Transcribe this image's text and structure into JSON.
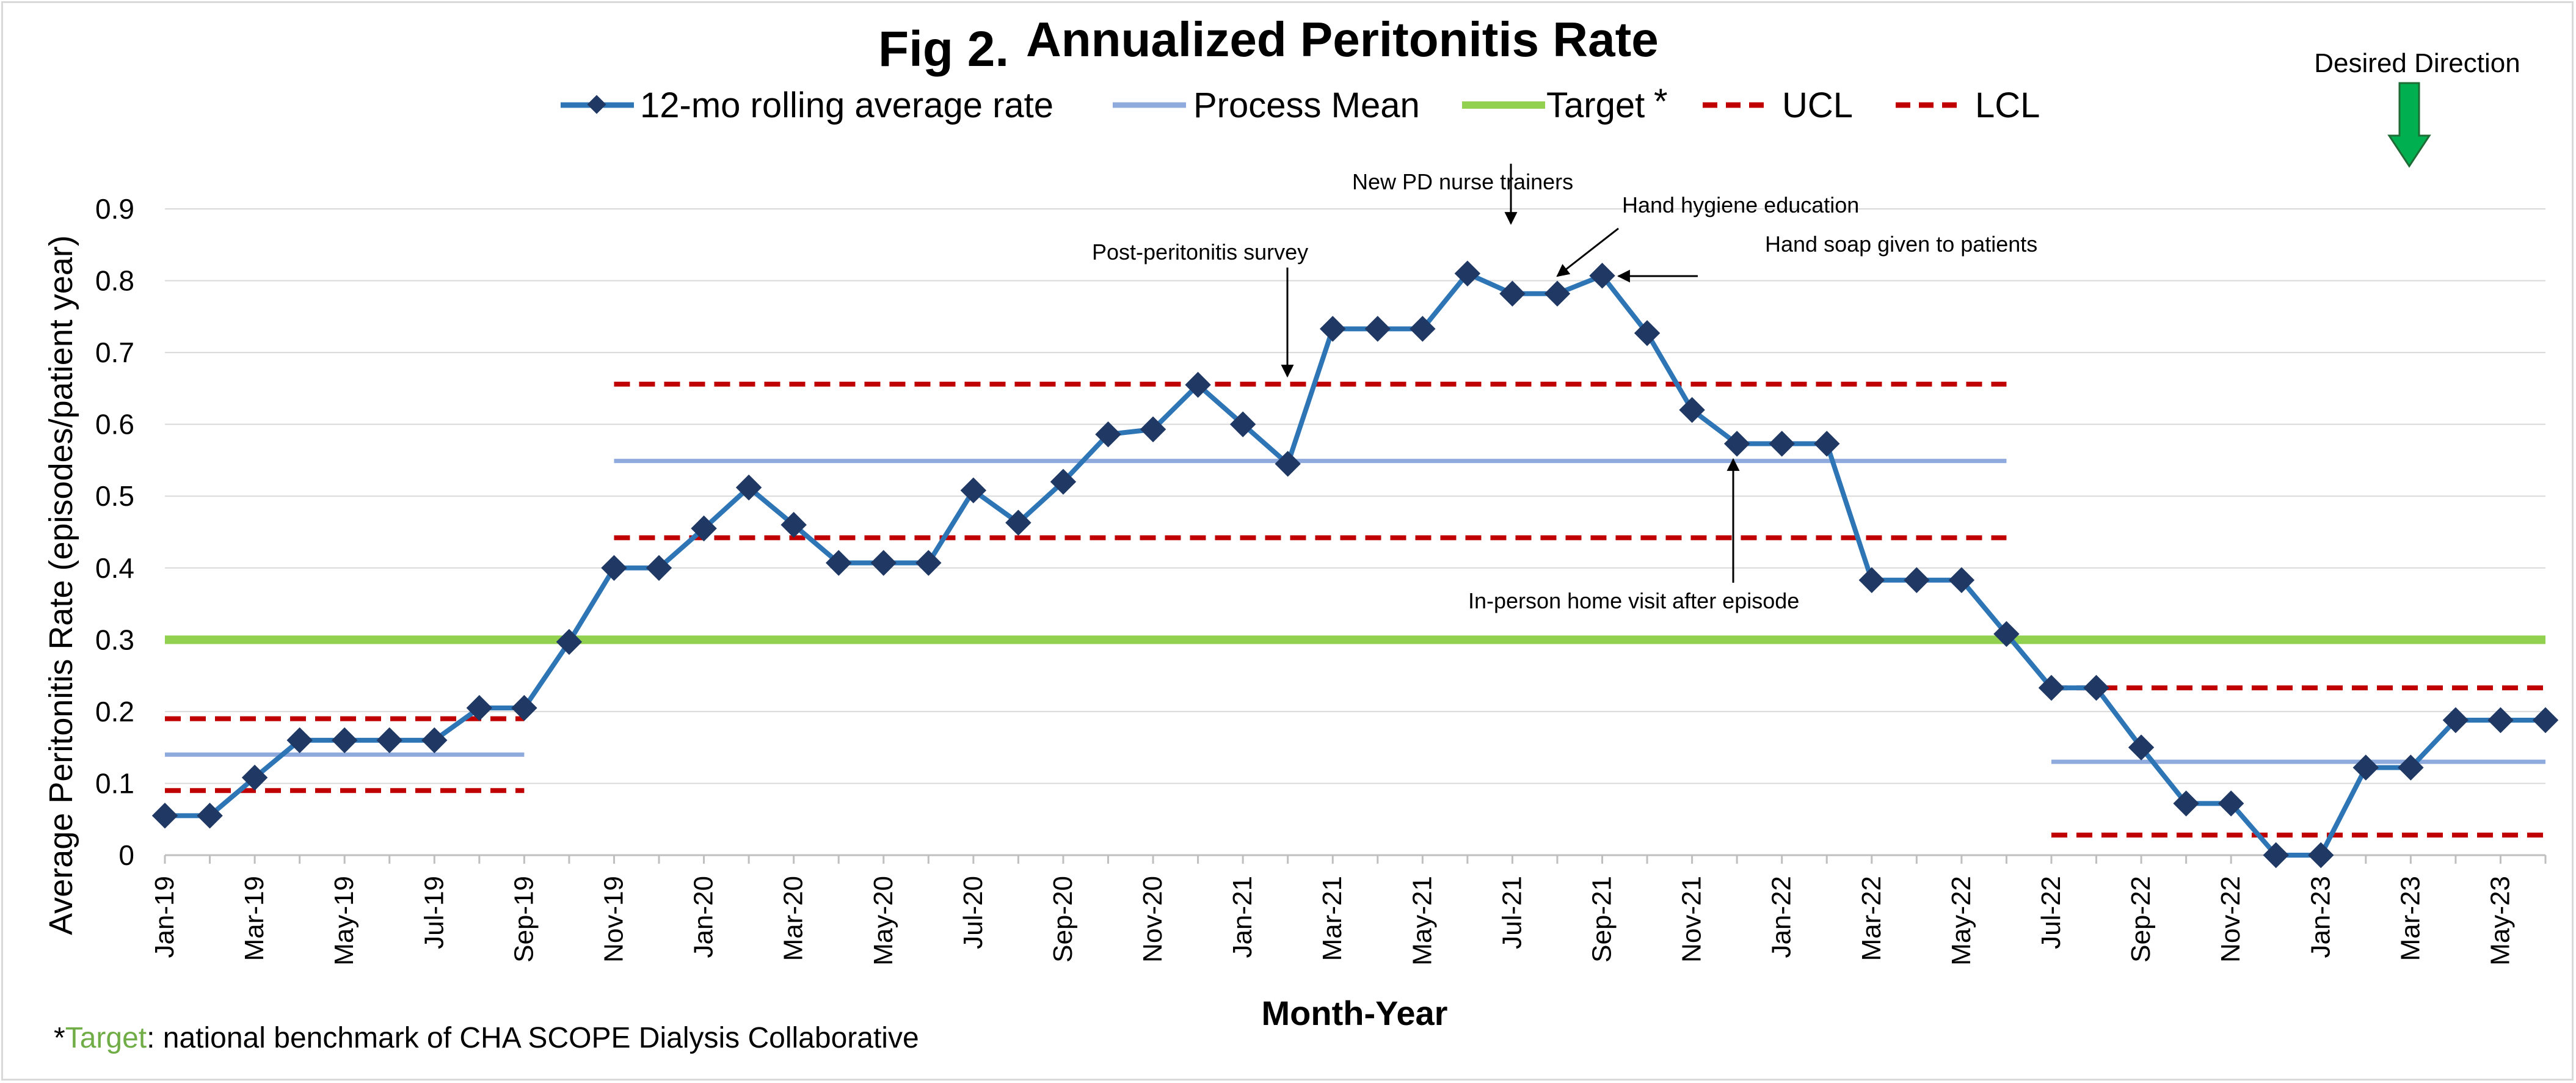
{
  "title_prefix": "Fig 2.",
  "title": "Annualized Peritonitis Rate",
  "desired_direction_label": "Desired Direction",
  "footnote": {
    "asterisk": "*",
    "target_word": "Target",
    "rest": ": national benchmark of CHA SCOPE Dialysis Collaborative"
  },
  "colors": {
    "series": "#2e75b6",
    "marker": "#1f3864",
    "process_mean": "#8faadc",
    "target": "#92d050",
    "control_limits": "#c00000",
    "arrow": "#00b050"
  },
  "chart_data": {
    "type": "line",
    "title": "Annualized Peritonitis Rate",
    "xlabel": "Month-Year",
    "ylabel": "Average Peritonitis Rate (episodes/patient year)",
    "ylim": [
      0,
      0.9
    ],
    "yticks": [
      "0",
      "0.1",
      "0.2",
      "0.3",
      "0.4",
      "0.5",
      "0.6",
      "0.7",
      "0.8",
      "0.9"
    ],
    "grid": true,
    "legend_position": "top",
    "x_tick_labels": [
      "Jan-19",
      "Mar-19",
      "May-19",
      "Jul-19",
      "Sep-19",
      "Nov-19",
      "Jan-20",
      "Mar-20",
      "May-20",
      "Jul-20",
      "Sep-20",
      "Nov-20",
      "Jan-21",
      "Mar-21",
      "May-21",
      "Jul-21",
      "Sep-21",
      "Nov-21",
      "Jan-22",
      "Mar-22",
      "May-22",
      "Jul-22",
      "Sep-22",
      "Nov-22",
      "Jan-23",
      "Mar-23",
      "May-23"
    ],
    "x": [
      "Jan-19",
      "Feb-19",
      "Mar-19",
      "Apr-19",
      "May-19",
      "Jun-19",
      "Jul-19",
      "Aug-19",
      "Sep-19",
      "Oct-19",
      "Nov-19",
      "Dec-19",
      "Jan-20",
      "Feb-20",
      "Mar-20",
      "Apr-20",
      "May-20",
      "Jun-20",
      "Jul-20",
      "Aug-20",
      "Sep-20",
      "Oct-20",
      "Nov-20",
      "Dec-20",
      "Jan-21",
      "Feb-21",
      "Mar-21",
      "Apr-21",
      "May-21",
      "Jun-21",
      "Jul-21",
      "Aug-21",
      "Sep-21",
      "Oct-21",
      "Nov-21",
      "Dec-21",
      "Jan-22",
      "Feb-22",
      "Mar-22",
      "Apr-22",
      "May-22",
      "Jun-22",
      "Jul-22",
      "Aug-22",
      "Sep-22",
      "Oct-22",
      "Nov-22",
      "Dec-22",
      "Jan-23",
      "Feb-23",
      "Mar-23",
      "Apr-23",
      "May-23",
      "Jun-23"
    ],
    "series": [
      {
        "name": "12-mo rolling average rate",
        "style": "line-with-diamond-markers",
        "values": [
          0.055,
          0.055,
          0.108,
          0.16,
          0.16,
          0.16,
          0.16,
          0.205,
          0.205,
          0.297,
          0.4,
          0.4,
          0.455,
          0.512,
          0.46,
          0.407,
          0.407,
          0.407,
          0.508,
          0.463,
          0.52,
          0.586,
          0.593,
          0.655,
          0.6,
          0.545,
          0.733,
          0.733,
          0.733,
          0.81,
          0.782,
          0.782,
          0.807,
          0.727,
          0.62,
          0.573,
          0.573,
          0.573,
          0.383,
          0.383,
          0.383,
          0.308,
          0.233,
          0.233,
          0.15,
          0.072,
          0.072,
          0.0,
          0.0,
          0.122,
          0.122,
          0.188,
          0.188,
          0.188
        ]
      }
    ],
    "reference_lines": [
      {
        "name": "Process Mean",
        "style": "solid",
        "segments": [
          {
            "from": "Jan-19",
            "to": "Sep-19",
            "value": 0.14
          },
          {
            "from": "Nov-19",
            "to": "Jun-22",
            "value": 0.549
          },
          {
            "from": "Jul-22",
            "to": "Jun-23",
            "value": 0.13
          }
        ]
      },
      {
        "name": "Target*",
        "style": "solid-thick",
        "segments": [
          {
            "from": "Jan-19",
            "to": "Jun-23",
            "value": 0.3
          }
        ]
      },
      {
        "name": "UCL",
        "style": "dashed",
        "segments": [
          {
            "from": "Jan-19",
            "to": "Sep-19",
            "value": 0.19
          },
          {
            "from": "Nov-19",
            "to": "Jun-22",
            "value": 0.656
          },
          {
            "from": "Jul-22",
            "to": "Jun-23",
            "value": 0.233
          }
        ]
      },
      {
        "name": "LCL",
        "style": "dashed",
        "segments": [
          {
            "from": "Jan-19",
            "to": "Sep-19",
            "value": 0.09
          },
          {
            "from": "Nov-19",
            "to": "Jun-22",
            "value": 0.442
          },
          {
            "from": "Jul-22",
            "to": "Jun-23",
            "value": 0.028
          }
        ]
      }
    ],
    "legend": [
      "12-mo rolling average rate",
      "Process Mean",
      "Target",
      "UCL",
      "LCL"
    ],
    "legend_target_suffix": "*",
    "annotations": [
      {
        "text": "Post-peritonitis survey",
        "point": "Feb-21"
      },
      {
        "text": "New PD nurse trainers",
        "point": "Jul-21"
      },
      {
        "text": "Hand hygiene education",
        "point": "Aug-21"
      },
      {
        "text": "Hand soap given to patients",
        "point": "Sep-21"
      },
      {
        "text": "In-person home visit after episode",
        "point": "Dec-21"
      }
    ]
  }
}
